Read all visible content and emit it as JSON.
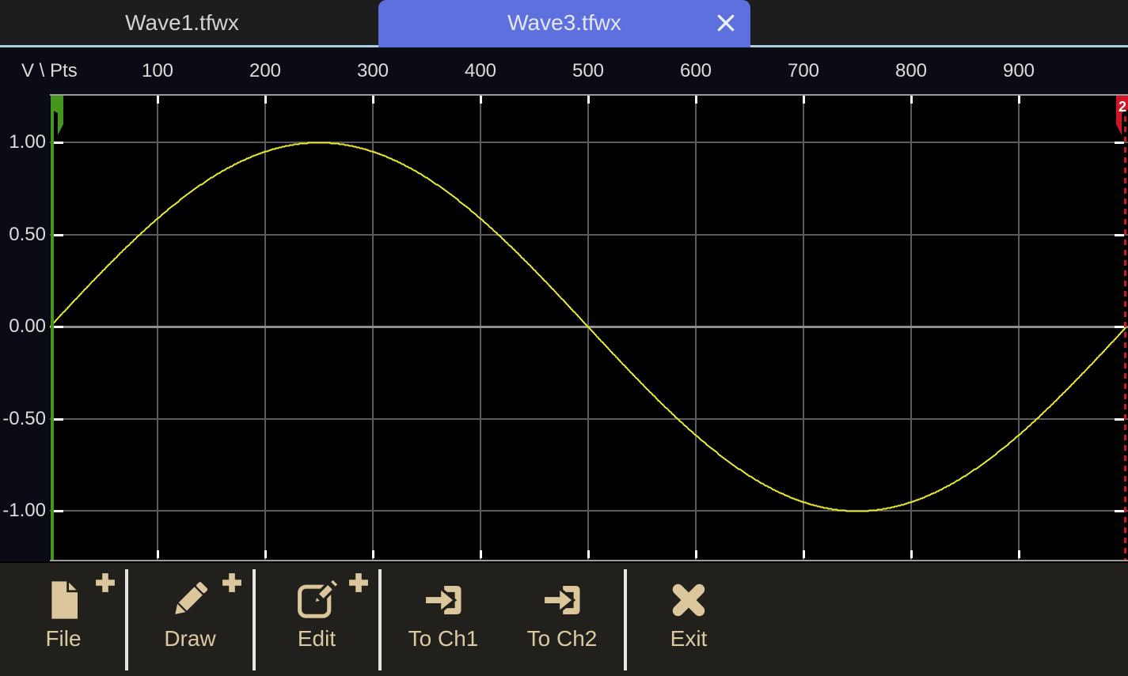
{
  "tabs": [
    {
      "label": "Wave1.tfwx",
      "active": false
    },
    {
      "label": "Wave3.tfwx",
      "active": true
    }
  ],
  "axis": {
    "corner_label": "V \\ Pts",
    "x_tick_labels": [
      "100",
      "200",
      "300",
      "400",
      "500",
      "600",
      "700",
      "800",
      "900"
    ],
    "y_tick_labels": [
      "1.00",
      "0.50",
      "0.00",
      "-0.50",
      "-1.00"
    ]
  },
  "markers": {
    "start": {
      "color": "#44971c",
      "style": "solid"
    },
    "end": {
      "color": "#cf1627",
      "style": "dashed",
      "label": "2"
    }
  },
  "chart_data": {
    "type": "line",
    "waveform": "sine",
    "title": "",
    "x_label": "Pts",
    "y_label": "V",
    "x_range": [
      0,
      1000
    ],
    "y_range_visible": [
      -1.27,
      1.26
    ],
    "x_ticks": [
      100,
      200,
      300,
      400,
      500,
      600,
      700,
      800,
      900
    ],
    "y_ticks": [
      1.0,
      0.5,
      0.0,
      -0.5,
      -1.0
    ],
    "points": 1000,
    "amplitude": 1.0,
    "offset": 0.0,
    "cycles": 1,
    "phase_deg": 0,
    "key_points": [
      {
        "x": 0,
        "y": 0.0
      },
      {
        "x": 250,
        "y": 1.0
      },
      {
        "x": 500,
        "y": 0.0
      },
      {
        "x": 750,
        "y": -1.0
      },
      {
        "x": 1000,
        "y": 0.0
      }
    ],
    "series": [
      {
        "name": "Wave3.tfwx",
        "color": "#e8e830"
      }
    ],
    "grid": true,
    "legend": false
  },
  "colors": {
    "active_tab": "#5e70dd",
    "tab_bar": "#1d1d1d",
    "header_strip": "#0b0b15",
    "separator_line": "#a9cfe0",
    "grid": "#5c5c5c",
    "zero_line": "#8e8e8e",
    "wave": "#e8e830",
    "toolbar_icon": "#dcc79d",
    "toolbar_bg": "#21201d"
  },
  "toolbar": {
    "buttons": [
      {
        "id": "file",
        "label": "File",
        "icon": "file-icon",
        "plus": true
      },
      {
        "id": "draw",
        "label": "Draw",
        "icon": "pencil-icon",
        "plus": true
      },
      {
        "id": "edit",
        "label": "Edit",
        "icon": "edit-icon",
        "plus": true
      },
      {
        "id": "to-ch1",
        "label": "To Ch1",
        "icon": "arrow-to-bracket-icon",
        "plus": false
      },
      {
        "id": "to-ch2",
        "label": "To Ch2",
        "icon": "arrow-to-bracket-icon",
        "plus": false
      },
      {
        "id": "exit",
        "label": "Exit",
        "icon": "x-mark-icon",
        "plus": false
      }
    ]
  }
}
